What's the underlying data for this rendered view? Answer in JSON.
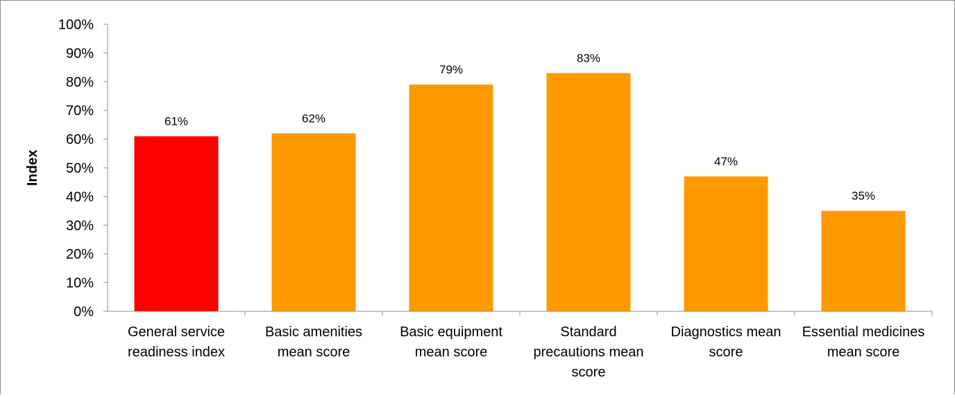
{
  "chart_data": {
    "type": "bar",
    "title": "",
    "xlabel": "",
    "ylabel": "Index",
    "ylim": [
      0,
      100
    ],
    "yticks": [
      "0%",
      "10%",
      "20%",
      "30%",
      "40%",
      "50%",
      "60%",
      "70%",
      "80%",
      "90%",
      "100%"
    ],
    "grid": false,
    "categories": [
      [
        "General service",
        "readiness index"
      ],
      [
        "Basic amenities",
        "mean score"
      ],
      [
        "Basic equipment",
        "mean score"
      ],
      [
        "Standard",
        "precautions mean",
        "score"
      ],
      [
        "Diagnostics mean",
        "score"
      ],
      [
        "Essential medicines",
        "mean score"
      ]
    ],
    "values": [
      61,
      62,
      79,
      83,
      47,
      35
    ],
    "data_labels": [
      "61%",
      "62%",
      "79%",
      "83%",
      "47%",
      "35%"
    ],
    "colors": [
      "#ff0000",
      "#ff9900",
      "#ff9900",
      "#ff9900",
      "#ff9900",
      "#ff9900"
    ]
  }
}
